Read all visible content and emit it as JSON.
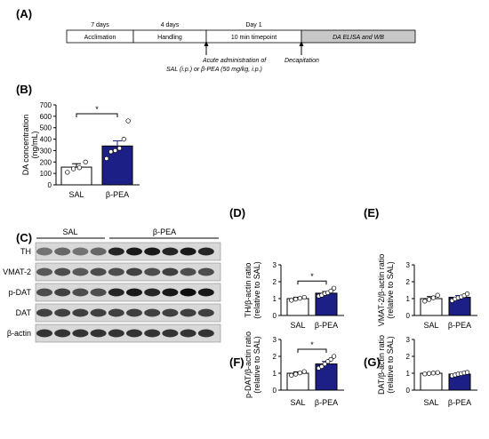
{
  "timeline": {
    "panel_label": "(A)",
    "segments": [
      {
        "top": "7 days",
        "label": "Acclimation",
        "italic": false
      },
      {
        "top": "4 days",
        "label": "Handling",
        "italic": false
      },
      {
        "top": "Day 1",
        "label": "10 min timepoint",
        "italic": false
      },
      {
        "top": "",
        "label": "DA ELISA and WB",
        "italic": true
      }
    ],
    "annotation_admin_line1": "Acute administration of",
    "annotation_admin_line2": "SAL (i.p.) or β-PEA (50 mg/kg, i.p.)",
    "annotation_decap": "Decapitation",
    "colors": {
      "last_segment": "#c8c8c8"
    }
  },
  "western": {
    "panel_label": "(C)",
    "groups": [
      "SAL",
      "β-PEA"
    ],
    "rows": [
      "TH",
      "VMAT-2",
      "p-DAT",
      "DAT",
      "β-actin"
    ]
  },
  "chart_data": [
    {
      "panel": "(B)",
      "type": "bar",
      "categories": [
        "SAL",
        "β-PEA"
      ],
      "values": [
        155,
        340
      ],
      "error": [
        30,
        45
      ],
      "points": [
        [
          110,
          140,
          150,
          200
        ],
        [
          230,
          290,
          300,
          320,
          400,
          560
        ]
      ],
      "ylabel_line1": "DA concentration",
      "ylabel_line2": "(ng/mL)",
      "ylim": [
        0,
        700
      ],
      "yticks": [
        "0",
        "100",
        "200",
        "300",
        "400",
        "500",
        "600",
        "700"
      ],
      "significance": "*"
    },
    {
      "panel": "(D)",
      "type": "bar",
      "categories": [
        "SAL",
        "β-PEA"
      ],
      "values": [
        1.0,
        1.32
      ],
      "error": [
        0.08,
        0.1
      ],
      "points": [
        [
          0.9,
          0.97,
          1.02,
          1.08
        ],
        [
          1.15,
          1.2,
          1.3,
          1.35,
          1.45,
          1.62
        ]
      ],
      "ylabel_line1": "TH/β-actin ratio",
      "ylabel_line2": "(relative to SAL)",
      "ylim": [
        0,
        3
      ],
      "yticks": [
        "0",
        "1",
        "2",
        "3"
      ],
      "significance": "*"
    },
    {
      "panel": "(E)",
      "type": "bar",
      "categories": [
        "SAL",
        "β-PEA"
      ],
      "values": [
        1.0,
        1.08
      ],
      "error": [
        0.12,
        0.1
      ],
      "points": [
        [
          0.85,
          0.95,
          1.05,
          1.2
        ],
        [
          0.88,
          0.98,
          1.05,
          1.1,
          1.18,
          1.28
        ]
      ],
      "ylabel_line1": "VMAT-2/β-actin ratio",
      "ylabel_line2": "(relative to SAL)",
      "ylim": [
        0,
        3
      ],
      "yticks": [
        "0",
        "1",
        "2",
        "3"
      ],
      "significance": ""
    },
    {
      "panel": "(F)",
      "type": "bar",
      "categories": [
        "SAL",
        "β-PEA"
      ],
      "values": [
        1.0,
        1.55
      ],
      "error": [
        0.08,
        0.15
      ],
      "points": [
        [
          0.88,
          0.95,
          1.02,
          1.1
        ],
        [
          1.3,
          1.4,
          1.55,
          1.7,
          1.82,
          2.0
        ]
      ],
      "ylabel_line1": "p-DAT/β-actin ratio",
      "ylabel_line2": "(relative to SAL)",
      "ylim": [
        0,
        3
      ],
      "yticks": [
        "0",
        "1",
        "2",
        "3"
      ],
      "significance": "*"
    },
    {
      "panel": "(G)",
      "type": "bar",
      "categories": [
        "SAL",
        "β-PEA"
      ],
      "values": [
        1.0,
        0.95
      ],
      "error": [
        0.04,
        0.06
      ],
      "points": [
        [
          0.96,
          0.99,
          1.01,
          1.04
        ],
        [
          0.85,
          0.9,
          0.95,
          0.98,
          1.02,
          1.05
        ]
      ],
      "ylabel_line1": "DAT/β-actin ratio",
      "ylabel_line2": "(relative to SAL)",
      "ylim": [
        0,
        3
      ],
      "yticks": [
        "0",
        "1",
        "2",
        "3"
      ],
      "significance": ""
    }
  ],
  "colors": {
    "sal_bar": "#ffffff",
    "pea_bar": "#1b1f86",
    "axis": "#000000",
    "point_pea": "#ffffff"
  }
}
